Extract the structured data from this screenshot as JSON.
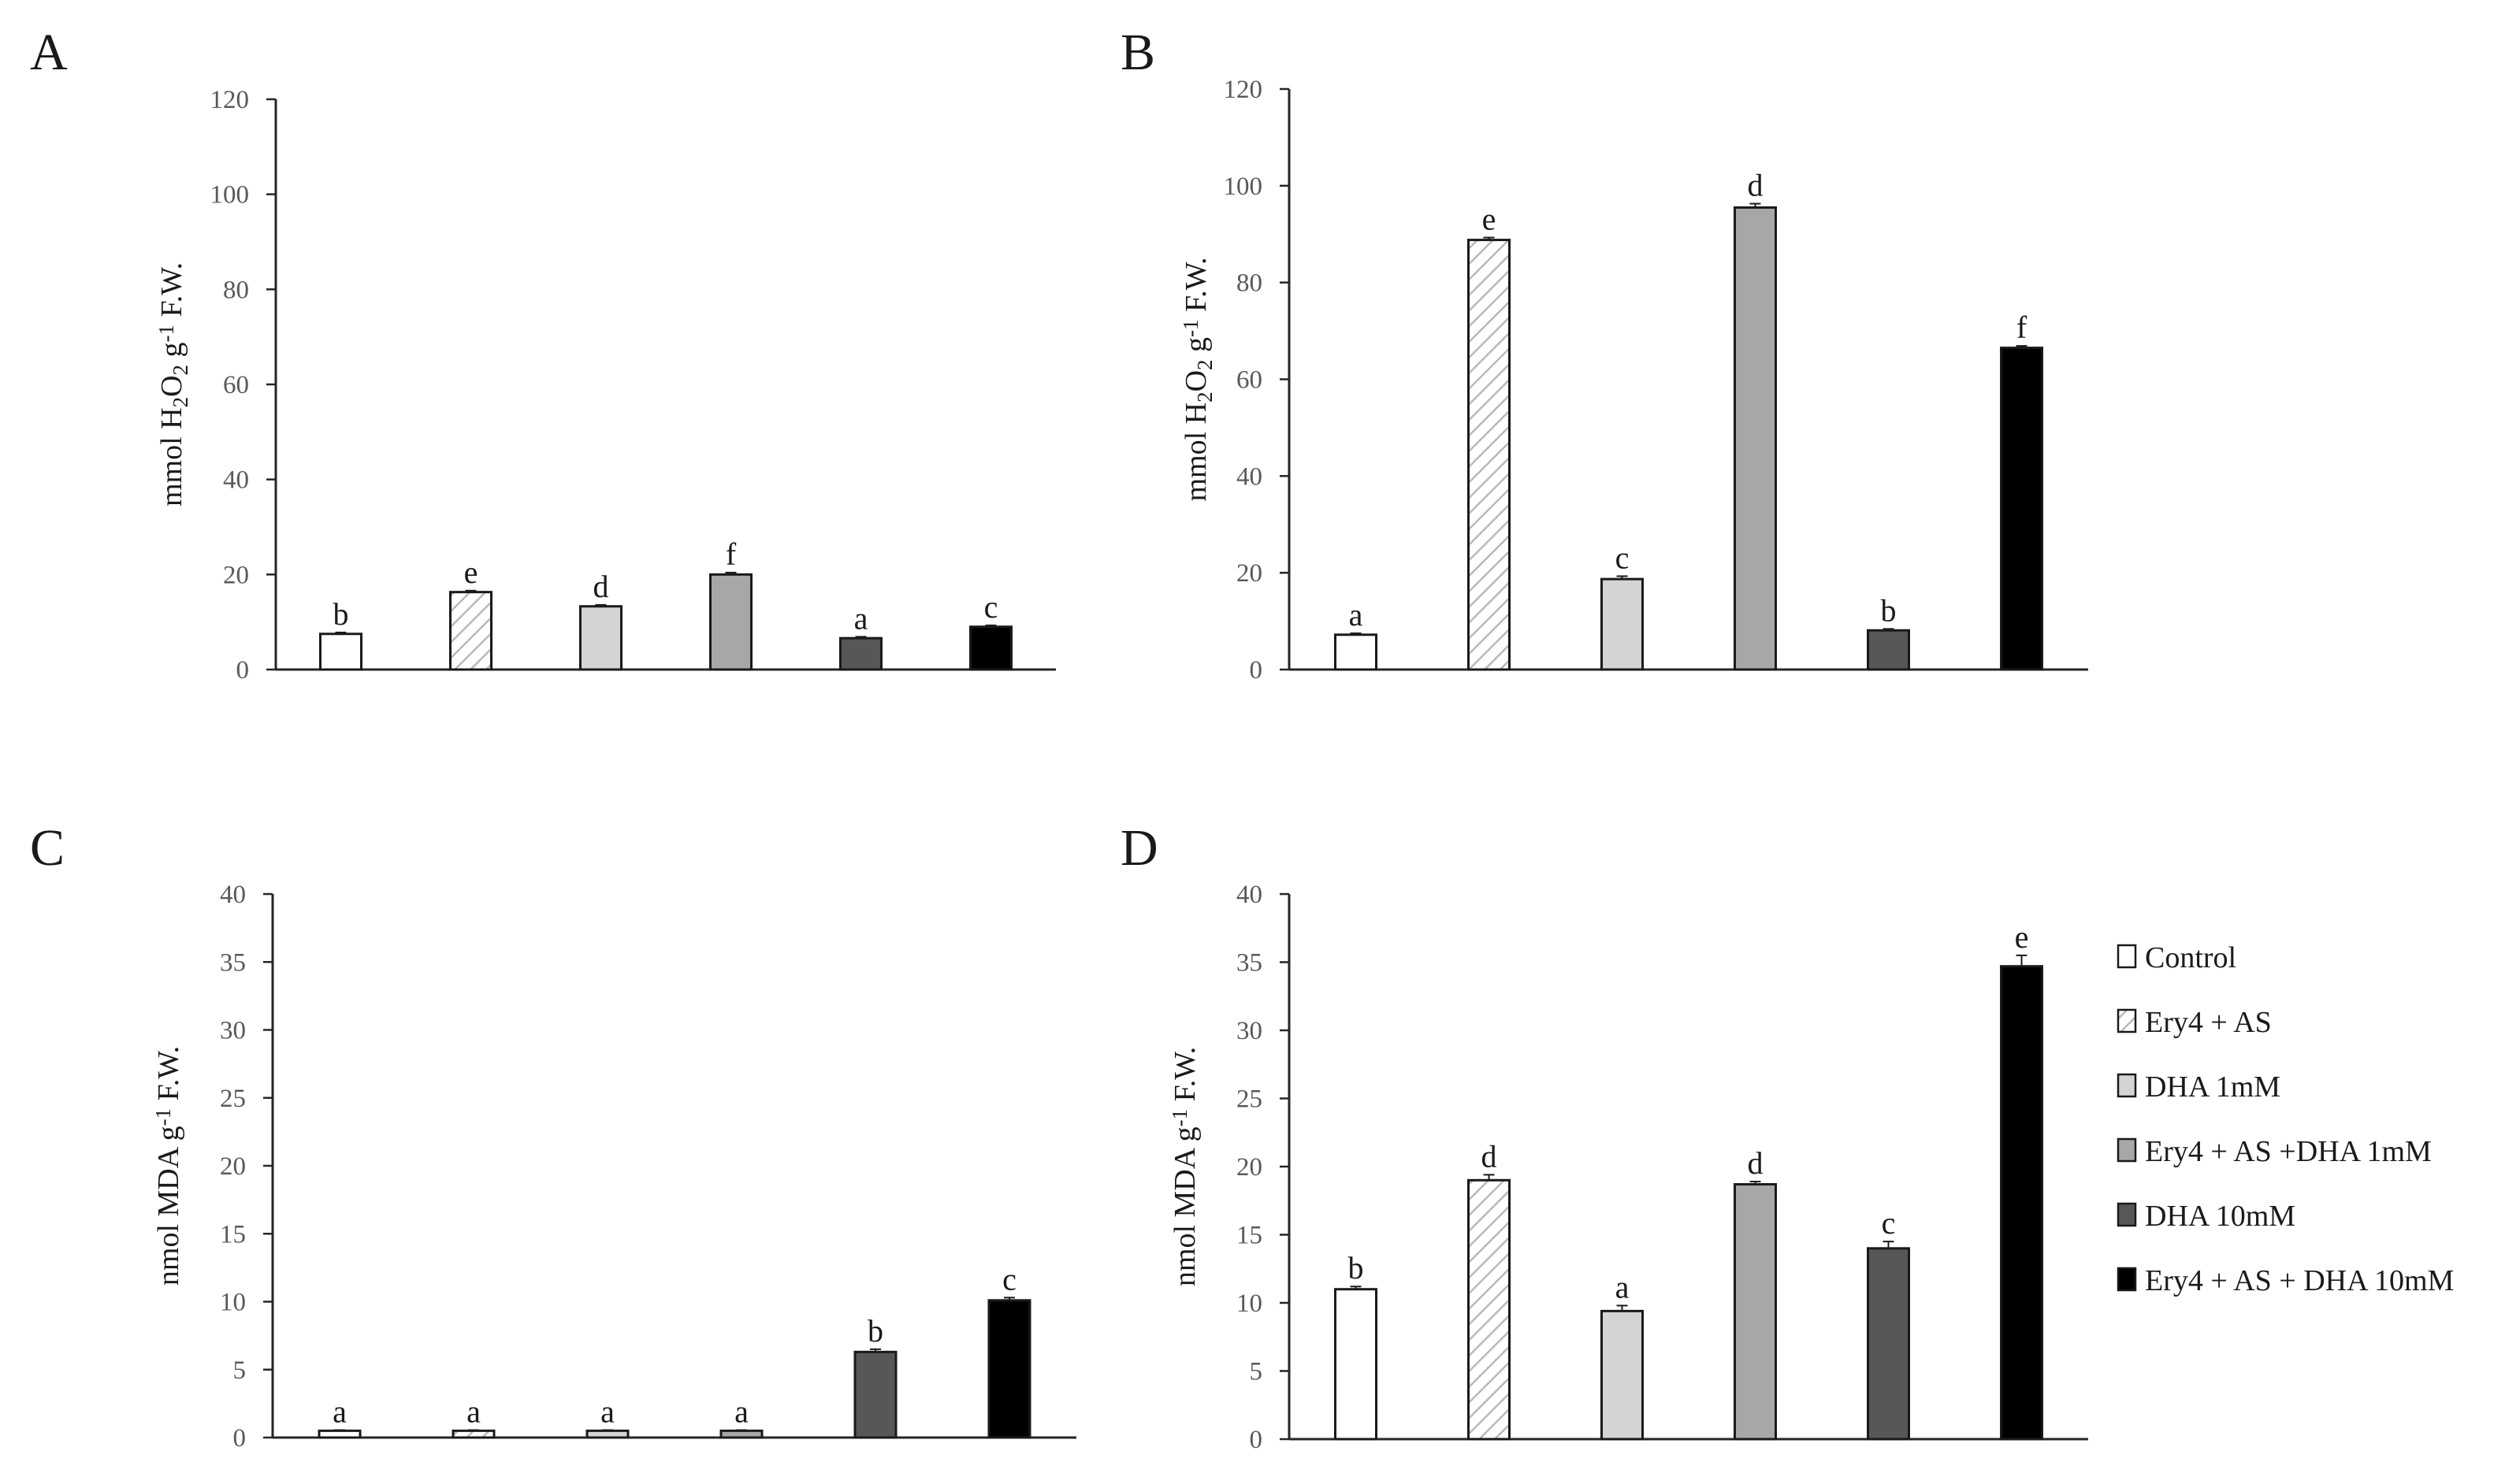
{
  "colors": {
    "control": "#ffffff",
    "ery4_as": "#ffffff",
    "ery4_as_hatch": "#b9b9b9",
    "dha_1mm": "#d4d4d4",
    "ery4_as_dha_1mm": "#a9a6a6",
    "dha_10mm": "#575757",
    "ery4_as_dha_10mm": "#000000",
    "axis": "#262626",
    "tick_label": "#595959"
  },
  "legend": {
    "items": [
      {
        "label": "Control",
        "fill": "#ffffff",
        "hatch": false
      },
      {
        "label": "Ery4 + AS",
        "fill": "#ffffff",
        "hatch": true
      },
      {
        "label": "DHA 1mM",
        "fill": "#d4d4d4",
        "hatch": false
      },
      {
        "label": "Ery4 + AS +DHA 1mM",
        "fill": "#a9a6a6",
        "hatch": false
      },
      {
        "label": "DHA 10mM",
        "fill": "#575757",
        "hatch": false
      },
      {
        "label": "Ery4 + AS + DHA 10mM",
        "fill": "#000000",
        "hatch": false
      }
    ]
  },
  "chart_data": [
    {
      "panel": "A",
      "type": "bar",
      "ylabel": {
        "pre": "mmol H",
        "sub1": "2",
        "mid": "O",
        "sub2": "2",
        "gap": "  g",
        "sup": "-1",
        "post": " F.W."
      },
      "ylim": [
        0,
        120
      ],
      "yticks": [
        "0",
        "20",
        "40",
        "60",
        "80",
        "100",
        "120"
      ],
      "series": [
        {
          "name": "Control",
          "value": 7.5,
          "error": 0.3,
          "letter": "b"
        },
        {
          "name": "Ery4 + AS",
          "value": 16.3,
          "error": 0.3,
          "letter": "e"
        },
        {
          "name": "DHA 1mM",
          "value": 13.3,
          "error": 0.3,
          "letter": "d"
        },
        {
          "name": "Ery4 + AS +DHA 1mM",
          "value": 20.0,
          "error": 0.4,
          "letter": "f"
        },
        {
          "name": "DHA 10mM",
          "value": 6.6,
          "error": 0.3,
          "letter": "a"
        },
        {
          "name": "Ery4 + AS + DHA 10mM",
          "value": 9.0,
          "error": 0.3,
          "letter": "c"
        }
      ]
    },
    {
      "panel": "B",
      "type": "bar",
      "ylabel": {
        "pre": "mmol H",
        "sub1": "2",
        "mid": "O",
        "sub2": "2",
        "gap": "  g",
        "sup": "-1",
        "post": " F.W."
      },
      "ylim": [
        0,
        120
      ],
      "yticks": [
        "0",
        "20",
        "40",
        "60",
        "80",
        "100",
        "120"
      ],
      "series": [
        {
          "name": "Control",
          "value": 7.2,
          "error": 0.3,
          "letter": "a"
        },
        {
          "name": "Ery4 + AS",
          "value": 88.8,
          "error": 0.5,
          "letter": "e"
        },
        {
          "name": "DHA 1mM",
          "value": 18.7,
          "error": 0.6,
          "letter": "c"
        },
        {
          "name": "Ery4 + AS +DHA 1mM",
          "value": 95.5,
          "error": 0.8,
          "letter": "d"
        },
        {
          "name": "DHA 10mM",
          "value": 8.1,
          "error": 0.3,
          "letter": "b"
        },
        {
          "name": "Ery4 + AS + DHA 10mM",
          "value": 66.5,
          "error": 0.4,
          "letter": "f"
        }
      ]
    },
    {
      "panel": "C",
      "type": "bar",
      "ylabel": {
        "pre": "nmol MDA g",
        "sup": "-1",
        "post": "  F.W."
      },
      "ylim": [
        0,
        40
      ],
      "yticks": [
        "0",
        "5",
        "10",
        "15",
        "20",
        "25",
        "30",
        "35",
        "40"
      ],
      "series": [
        {
          "name": "Control",
          "value": 0.5,
          "error": 0.05,
          "letter": "a"
        },
        {
          "name": "Ery4 + AS",
          "value": 0.5,
          "error": 0.05,
          "letter": "a"
        },
        {
          "name": "DHA 1mM",
          "value": 0.5,
          "error": 0.05,
          "letter": "a"
        },
        {
          "name": "Ery4 + AS +DHA 1mM",
          "value": 0.5,
          "error": 0.05,
          "letter": "a"
        },
        {
          "name": "DHA 10mM",
          "value": 6.3,
          "error": 0.2,
          "letter": "b"
        },
        {
          "name": "Ery4 + AS + DHA 10mM",
          "value": 10.1,
          "error": 0.2,
          "letter": "c"
        }
      ]
    },
    {
      "panel": "D",
      "type": "bar",
      "ylabel": {
        "pre": "nmol MDA g",
        "sup": "-1",
        "post": "  F.W."
      },
      "ylim": [
        0,
        40
      ],
      "yticks": [
        "0",
        "5",
        "10",
        "15",
        "20",
        "25",
        "30",
        "35",
        "40"
      ],
      "series": [
        {
          "name": "Control",
          "value": 11.0,
          "error": 0.2,
          "letter": "b"
        },
        {
          "name": "Ery4 + AS",
          "value": 19.0,
          "error": 0.4,
          "letter": "d"
        },
        {
          "name": "DHA 1mM",
          "value": 9.4,
          "error": 0.4,
          "letter": "a"
        },
        {
          "name": "Ery4 + AS +DHA 1mM",
          "value": 18.7,
          "error": 0.2,
          "letter": "d"
        },
        {
          "name": "DHA 10mM",
          "value": 14.0,
          "error": 0.5,
          "letter": "c"
        },
        {
          "name": "Ery4 + AS + DHA 10mM",
          "value": 34.7,
          "error": 0.8,
          "letter": "e"
        }
      ]
    }
  ]
}
